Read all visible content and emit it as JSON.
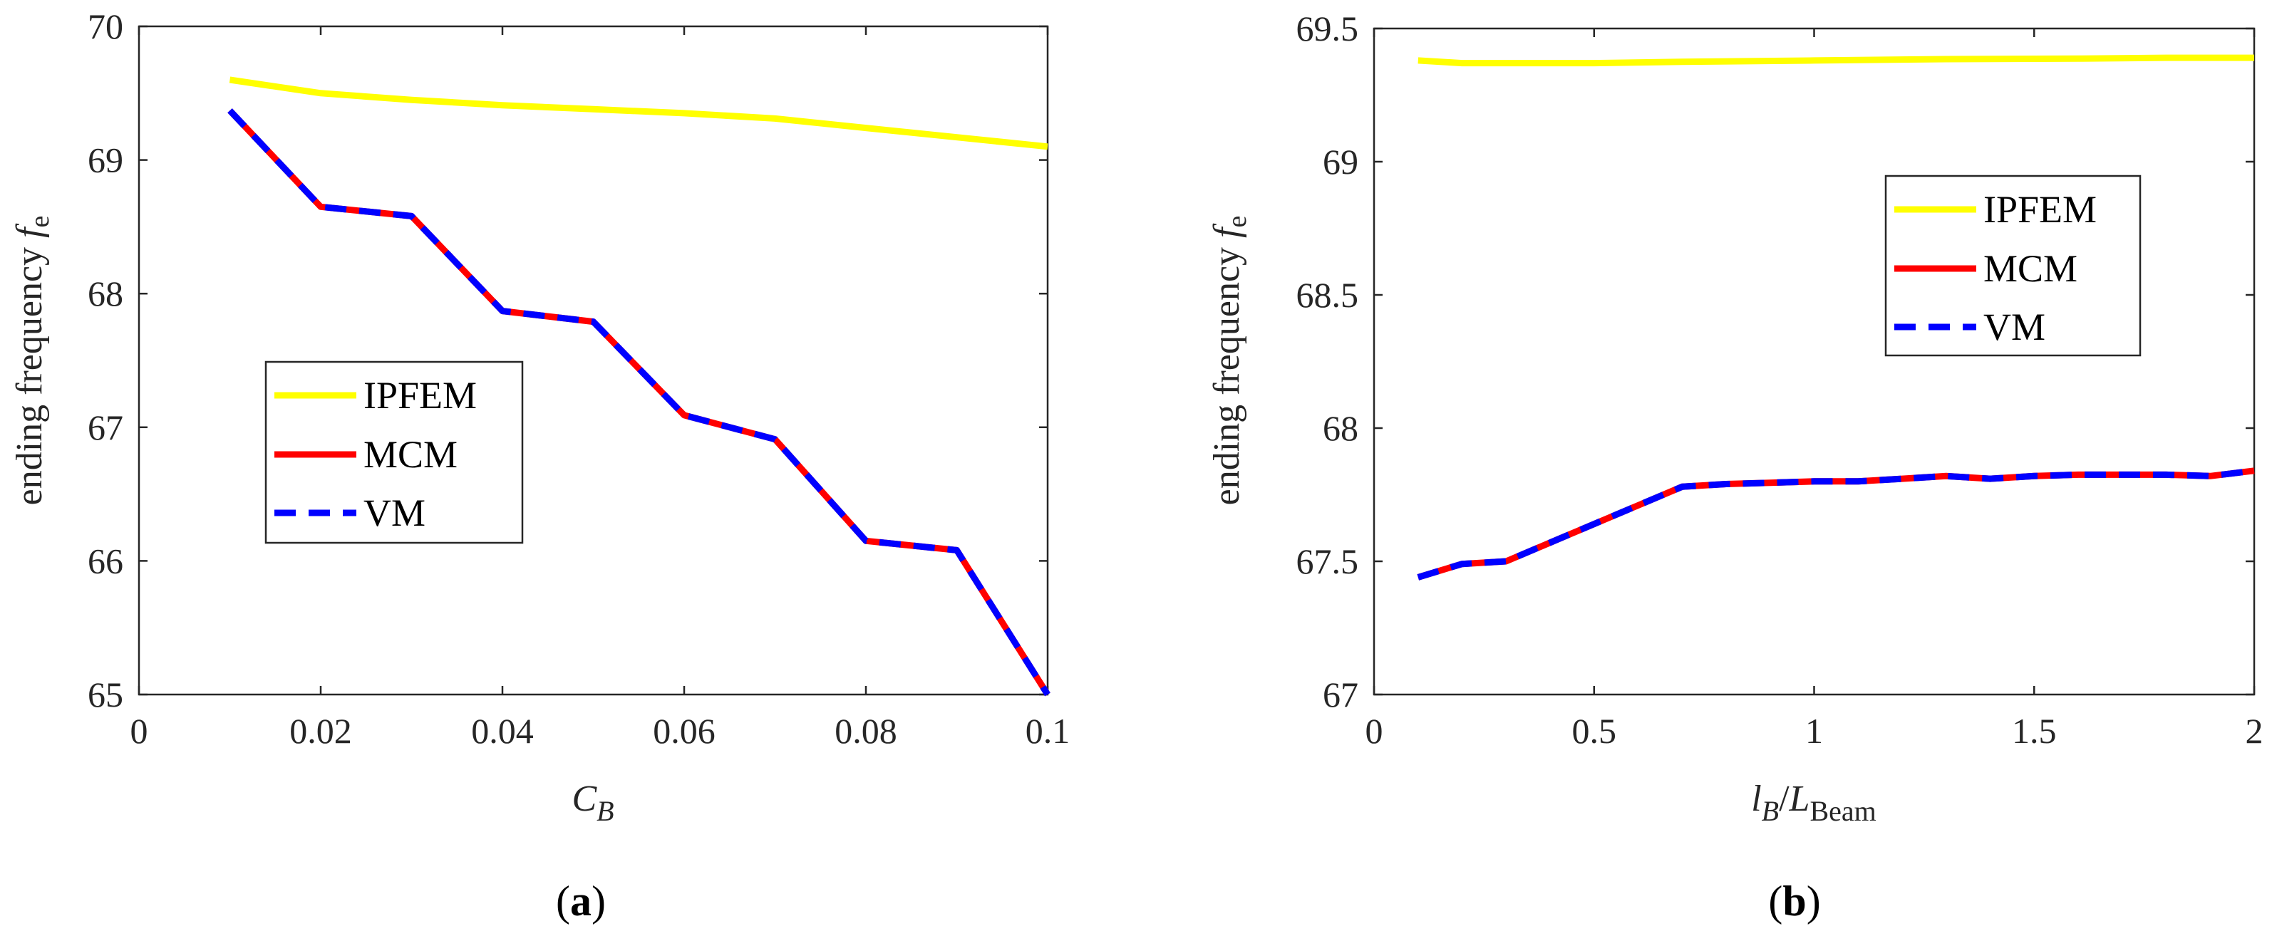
{
  "chart_data": [
    {
      "id": "a",
      "type": "line",
      "caption_letter": "a",
      "ylabel": "ending frequency ",
      "ylabel_symbol": "f",
      "ylabel_sub": "e",
      "xlabel_symbol": "C",
      "xlabel_sub": "B",
      "xlim": [
        0,
        0.1
      ],
      "ylim": [
        65,
        70
      ],
      "xticks": [
        0,
        0.02,
        0.04,
        0.06,
        0.08,
        0.1
      ],
      "xtick_labels": [
        "0",
        "0.02",
        "0.04",
        "0.06",
        "0.08",
        "0.1"
      ],
      "yticks": [
        65,
        66,
        67,
        68,
        69,
        70
      ],
      "ytick_labels": [
        "65",
        "66",
        "67",
        "68",
        "69",
        "70"
      ],
      "legend_position": "center-left",
      "series": [
        {
          "name": "IPFEM",
          "color": "#ffff00",
          "style": "solid",
          "x": [
            0.01,
            0.02,
            0.03,
            0.04,
            0.05,
            0.06,
            0.07,
            0.08,
            0.09,
            0.1
          ],
          "y": [
            69.6,
            69.5,
            69.45,
            69.41,
            69.38,
            69.35,
            69.31,
            69.24,
            69.17,
            69.1
          ]
        },
        {
          "name": "MCM",
          "color": "#ff0000",
          "style": "solid",
          "x": [
            0.01,
            0.02,
            0.03,
            0.04,
            0.05,
            0.06,
            0.07,
            0.08,
            0.09,
            0.1
          ],
          "y": [
            69.37,
            68.65,
            68.58,
            67.87,
            67.79,
            67.09,
            66.91,
            66.15,
            66.08,
            65.0
          ]
        },
        {
          "name": "VM",
          "color": "#0000ff",
          "style": "dashed",
          "x": [
            0.01,
            0.02,
            0.03,
            0.04,
            0.05,
            0.06,
            0.07,
            0.08,
            0.09,
            0.1
          ],
          "y": [
            69.37,
            68.65,
            68.58,
            67.87,
            67.79,
            67.09,
            66.91,
            66.15,
            66.08,
            65.0
          ]
        }
      ]
    },
    {
      "id": "b",
      "type": "line",
      "caption_letter": "b",
      "ylabel": "ending frequency ",
      "ylabel_symbol": "f",
      "ylabel_sub": "e",
      "xlabel_symbol": "l",
      "xlabel_sub": "B",
      "xlabel_slash": "/",
      "xlabel_symbol2": "L",
      "xlabel_sub2": "Beam",
      "xlim": [
        0,
        2
      ],
      "ylim": [
        67,
        69.5
      ],
      "xticks": [
        0,
        0.5,
        1,
        1.5,
        2
      ],
      "xtick_labels": [
        "0",
        "0.5",
        "1",
        "1.5",
        "2"
      ],
      "yticks": [
        67,
        67.5,
        68,
        68.5,
        69,
        69.5
      ],
      "ytick_labels": [
        "67",
        "67.5",
        "68",
        "68.5",
        "69",
        "69.5"
      ],
      "legend_position": "top-right",
      "series": [
        {
          "name": "IPFEM",
          "color": "#ffff00",
          "style": "solid",
          "x": [
            0.1,
            0.2,
            0.3,
            0.5,
            0.7,
            1.0,
            1.3,
            1.6,
            1.8,
            2.0
          ],
          "y": [
            69.38,
            69.37,
            69.37,
            69.37,
            69.375,
            69.38,
            69.385,
            69.387,
            69.39,
            69.39
          ]
        },
        {
          "name": "MCM",
          "color": "#ff0000",
          "style": "solid",
          "x": [
            0.1,
            0.2,
            0.3,
            0.4,
            0.5,
            0.6,
            0.7,
            0.8,
            0.9,
            1.0,
            1.1,
            1.2,
            1.3,
            1.4,
            1.5,
            1.6,
            1.7,
            1.8,
            1.9,
            2.0
          ],
          "y": [
            67.44,
            67.49,
            67.5,
            67.57,
            67.64,
            67.71,
            67.78,
            67.79,
            67.795,
            67.8,
            67.8,
            67.81,
            67.82,
            67.81,
            67.82,
            67.825,
            67.825,
            67.825,
            67.82,
            67.84
          ]
        },
        {
          "name": "VM",
          "color": "#0000ff",
          "style": "dashed",
          "x": [
            0.1,
            0.2,
            0.3,
            0.4,
            0.5,
            0.6,
            0.7,
            0.8,
            0.9,
            1.0,
            1.1,
            1.2,
            1.3,
            1.4,
            1.5,
            1.6,
            1.7,
            1.8,
            1.9,
            2.0
          ],
          "y": [
            67.44,
            67.49,
            67.5,
            67.57,
            67.64,
            67.71,
            67.78,
            67.79,
            67.795,
            67.8,
            67.8,
            67.81,
            67.82,
            67.81,
            67.82,
            67.825,
            67.825,
            67.825,
            67.82,
            67.84
          ]
        }
      ]
    }
  ]
}
